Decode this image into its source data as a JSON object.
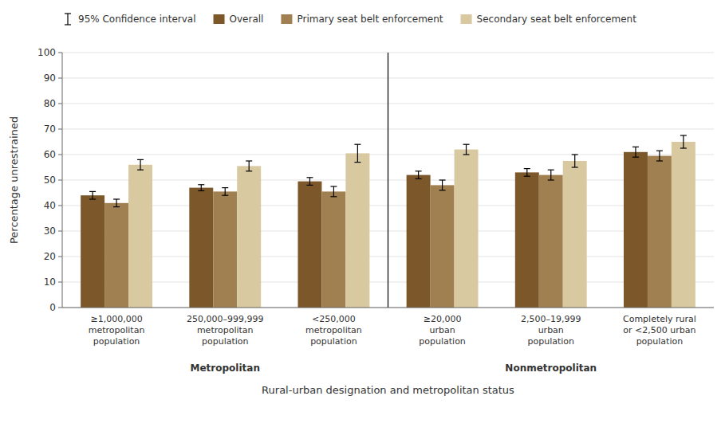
{
  "chart_data": {
    "type": "bar",
    "categories": [
      "≥1,000,000\nmetropolitan\npopulation",
      "250,000–999,999\nmetropolitan\npopulation",
      "<250,000\nmetropolitan\npopulation",
      "≥20,000\nurban\npopulation",
      "2,500–19,999\nurban\npopulation",
      "Completely rural\nor <2,500 urban\npopulation"
    ],
    "series": [
      {
        "name": "Overall",
        "color": "#7B5729",
        "values": [
          44.0,
          47.0,
          49.5,
          52.0,
          53.0,
          61.0
        ],
        "errors": [
          1.5,
          1.2,
          1.5,
          1.5,
          1.5,
          2.0
        ]
      },
      {
        "name": "Primary seat belt enforcement",
        "color": "#A08050",
        "values": [
          41.0,
          45.5,
          45.5,
          48.0,
          52.0,
          59.5
        ],
        "errors": [
          1.5,
          1.5,
          2.0,
          2.0,
          2.0,
          2.0
        ]
      },
      {
        "name": "Secondary seat belt enforcement",
        "color": "#D9C9A0",
        "values": [
          56.0,
          55.5,
          60.5,
          62.0,
          57.5,
          65.0
        ],
        "errors": [
          2.0,
          2.0,
          3.5,
          2.0,
          2.5,
          2.5
        ]
      }
    ],
    "error_bar_label": "95% Confidence interval",
    "ylabel": "Percentage unrestrained",
    "xlabel": "Rural-urban designation and metropolitan status",
    "annotations": [
      "Metropolitan",
      "Nonmetropolitan"
    ],
    "ylim": [
      0,
      100
    ],
    "yticks": [
      0,
      10,
      20,
      30,
      40,
      50,
      60,
      70,
      80,
      90,
      100
    ],
    "grid": true,
    "legend": "top"
  }
}
